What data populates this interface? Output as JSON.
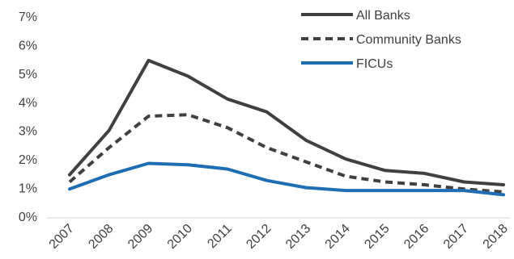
{
  "chart_data": {
    "type": "line",
    "categories": [
      "2007",
      "2008",
      "2009",
      "2010",
      "2011",
      "2012",
      "2013",
      "2014",
      "2015",
      "2016",
      "2017",
      "2018"
    ],
    "ylim": [
      0,
      7
    ],
    "yticks": [
      0,
      1,
      2,
      3,
      4,
      5,
      6,
      7
    ],
    "ytick_labels": [
      "0%",
      "1%",
      "2%",
      "3%",
      "4%",
      "5%",
      "6%",
      "7%"
    ],
    "legend_position": "top-right",
    "grid": false,
    "series": [
      {
        "name": "All Banks",
        "color": "#404040",
        "dash": "solid",
        "values": [
          1.45,
          3.0,
          5.45,
          4.9,
          4.1,
          3.65,
          2.65,
          2.0,
          1.6,
          1.5,
          1.2,
          1.1
        ]
      },
      {
        "name": "Community Banks",
        "color": "#404040",
        "dash": "dashed",
        "values": [
          1.2,
          2.4,
          3.5,
          3.55,
          3.1,
          2.4,
          1.9,
          1.4,
          1.2,
          1.1,
          0.95,
          0.85
        ]
      },
      {
        "name": "FICUs",
        "color": "#1f6eb5",
        "dash": "solid",
        "values": [
          0.95,
          1.45,
          1.85,
          1.8,
          1.65,
          1.25,
          1.0,
          0.9,
          0.9,
          0.9,
          0.9,
          0.75
        ]
      }
    ]
  }
}
